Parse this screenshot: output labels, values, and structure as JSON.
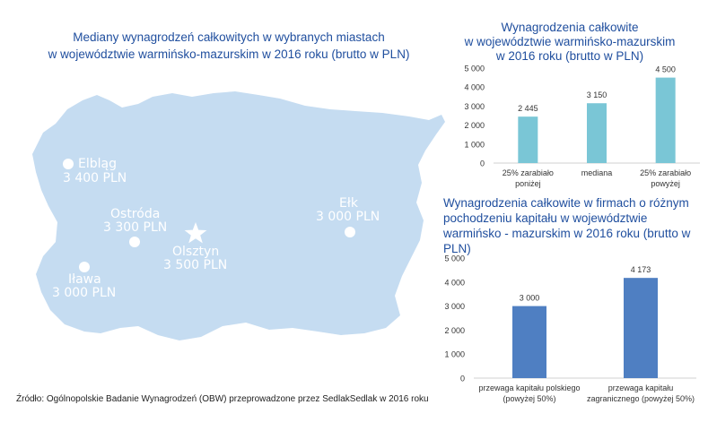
{
  "map": {
    "title_line1": "Mediany wynagrodzeń całkowitych w wybranych miastach",
    "title_line2": "w województwie warmińsko-mazurskim w 2016 roku (brutto w PLN)",
    "fill_color": "#c5dcf1",
    "cities": [
      {
        "name": "Elbląg",
        "value": "3 400 PLN",
        "marker": "circle"
      },
      {
        "name": "Ostróda",
        "value": "3 300 PLN",
        "marker": "circle"
      },
      {
        "name": "Olsztyn",
        "value": "3 500 PLN",
        "marker": "star"
      },
      {
        "name": "Ełk",
        "value": "3 000 PLN",
        "marker": "circle"
      },
      {
        "name": "Iława",
        "value": "3 000 PLN",
        "marker": "circle"
      }
    ]
  },
  "source": "Źródło: Ogólnopolskie Badanie Wynagrodzeń (OBW) przeprowadzone przez SedlakSedlak w 2016    roku",
  "chart_data": [
    {
      "type": "bar",
      "title_line1": "Wynagrodzenia całkowite",
      "title_line2": "w województwie warmińsko-mazurskim",
      "title_line3": "w 2016 roku (brutto w PLN)",
      "categories": [
        [
          "25% zarabiało",
          "poniżej"
        ],
        [
          "mediana"
        ],
        [
          "25% zarabiało",
          "powyżej"
        ]
      ],
      "values": [
        2445,
        3150,
        4500
      ],
      "value_labels": [
        "2 445",
        "3 150",
        "4 500"
      ],
      "ylim": [
        0,
        5000
      ],
      "yticks": [
        0,
        1000,
        2000,
        3000,
        4000,
        5000
      ],
      "ytick_labels": [
        "0",
        "1 000",
        "2 000",
        "3 000",
        "4 000",
        "5 000"
      ],
      "color": "#7ac6d6",
      "grid": false
    },
    {
      "type": "bar",
      "title_line1": "Wynagrodzenia całkowite w firmach o różnym",
      "title_line2": "pochodzeniu kapitału  w województwie",
      "title_line3": "warmińsko - mazurskim w 2016 roku (brutto w PLN)",
      "categories": [
        [
          "przewaga kapitału polskiego",
          "(powyżej 50%)"
        ],
        [
          "przewaga kapitału",
          "zagranicznego (powyżej 50%)"
        ]
      ],
      "values": [
        3000,
        4173
      ],
      "value_labels": [
        "3 000",
        "4 173"
      ],
      "ylim": [
        0,
        5000
      ],
      "yticks": [
        0,
        1000,
        2000,
        3000,
        4000,
        5000
      ],
      "ytick_labels": [
        "0",
        "1 000",
        "2 000",
        "3 000",
        "4 000",
        "5 000"
      ],
      "color": "#4f7fc2",
      "grid": false
    }
  ]
}
